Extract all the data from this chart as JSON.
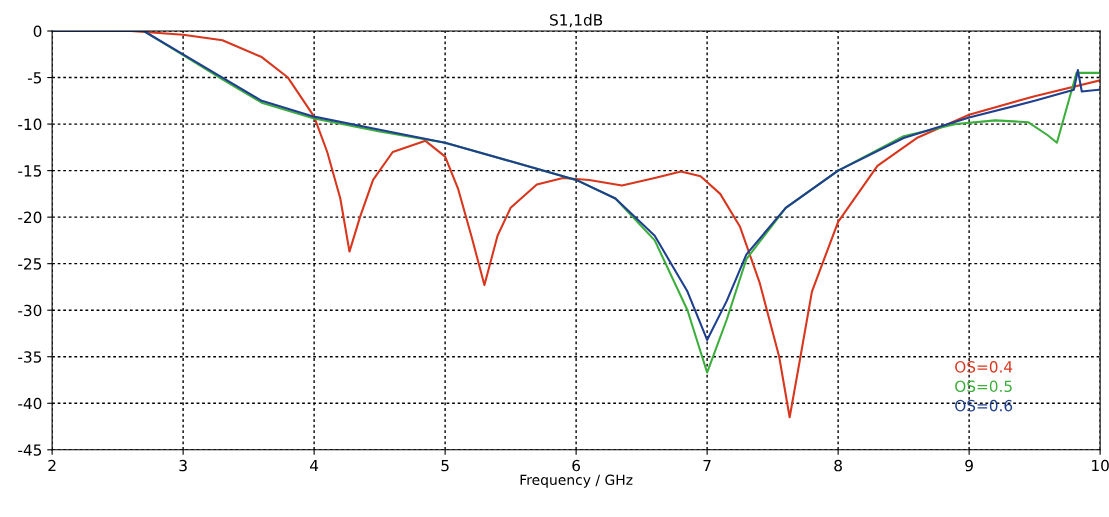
{
  "chart_data": {
    "type": "line",
    "title": "S1,1dB",
    "xlabel": "Frequency / GHz",
    "xlim": [
      2,
      10
    ],
    "ylim": [
      -45,
      0
    ],
    "xticks": [
      2,
      3,
      4,
      5,
      6,
      7,
      8,
      9,
      10
    ],
    "yticks": [
      0,
      -5,
      -10,
      -15,
      -20,
      -25,
      -30,
      -35,
      -40,
      -45
    ],
    "grid": true,
    "legend": "bottom right",
    "marker": "none",
    "line_style": "solid",
    "series": [
      {
        "name": "OS=0.4",
        "color": "#d9361e",
        "x": [
          2,
          2.6,
          3,
          3.3,
          3.6,
          3.8,
          4.0,
          4.1,
          4.2,
          4.27,
          4.35,
          4.45,
          4.6,
          4.85,
          5.0,
          5.1,
          5.2,
          5.3,
          5.4,
          5.5,
          5.7,
          5.9,
          6.1,
          6.35,
          6.6,
          6.8,
          6.95,
          7.1,
          7.25,
          7.4,
          7.55,
          7.63,
          7.7,
          7.8,
          8.0,
          8.3,
          8.6,
          9.0,
          9.5,
          10
        ],
        "values": [
          0,
          0,
          -0.4,
          -1.0,
          -2.8,
          -5,
          -9.2,
          -13,
          -18,
          -23.7,
          -20,
          -16,
          -13,
          -11.8,
          -13.5,
          -17,
          -22,
          -27.3,
          -22,
          -19,
          -16.5,
          -15.8,
          -16,
          -16.6,
          -15.8,
          -15.1,
          -15.6,
          -17.5,
          -21,
          -27,
          -35,
          -41.5,
          -36,
          -28,
          -20.5,
          -14.5,
          -11.5,
          -9,
          -7,
          -5.3
        ]
      },
      {
        "name": "OS=0.5",
        "color": "#3cae3c",
        "x": [
          2,
          2.7,
          3,
          3.3,
          3.6,
          4,
          4.5,
          5,
          5.5,
          6,
          6.3,
          6.6,
          6.85,
          7.0,
          7.15,
          7.3,
          7.6,
          8,
          8.5,
          8.9,
          9.2,
          9.45,
          9.6,
          9.67,
          9.75,
          9.82,
          9.9,
          10
        ],
        "values": [
          0,
          0,
          -2.6,
          -5.2,
          -7.7,
          -9.4,
          -10.8,
          -12,
          -14,
          -16,
          -18,
          -22.5,
          -30,
          -36.7,
          -31,
          -24.5,
          -19,
          -15,
          -11.3,
          -10,
          -9.6,
          -9.8,
          -11.2,
          -12,
          -8,
          -4.5,
          -4.5,
          -4.5
        ]
      },
      {
        "name": "OS=0.6",
        "color": "#1f3f8f",
        "x": [
          2,
          2.7,
          3,
          3.3,
          3.6,
          4,
          4.5,
          5,
          5.5,
          6,
          6.3,
          6.6,
          6.85,
          7.0,
          7.15,
          7.3,
          7.6,
          8,
          8.5,
          9,
          9.5,
          9.8,
          9.83,
          9.86,
          10
        ],
        "values": [
          0,
          0,
          -2.5,
          -5,
          -7.5,
          -9.2,
          -10.6,
          -12,
          -14,
          -16,
          -18,
          -22,
          -28,
          -33.2,
          -29,
          -24,
          -19,
          -15,
          -11.5,
          -9.3,
          -7.5,
          -6.3,
          -4.2,
          -6.5,
          -6.3
        ]
      }
    ]
  }
}
